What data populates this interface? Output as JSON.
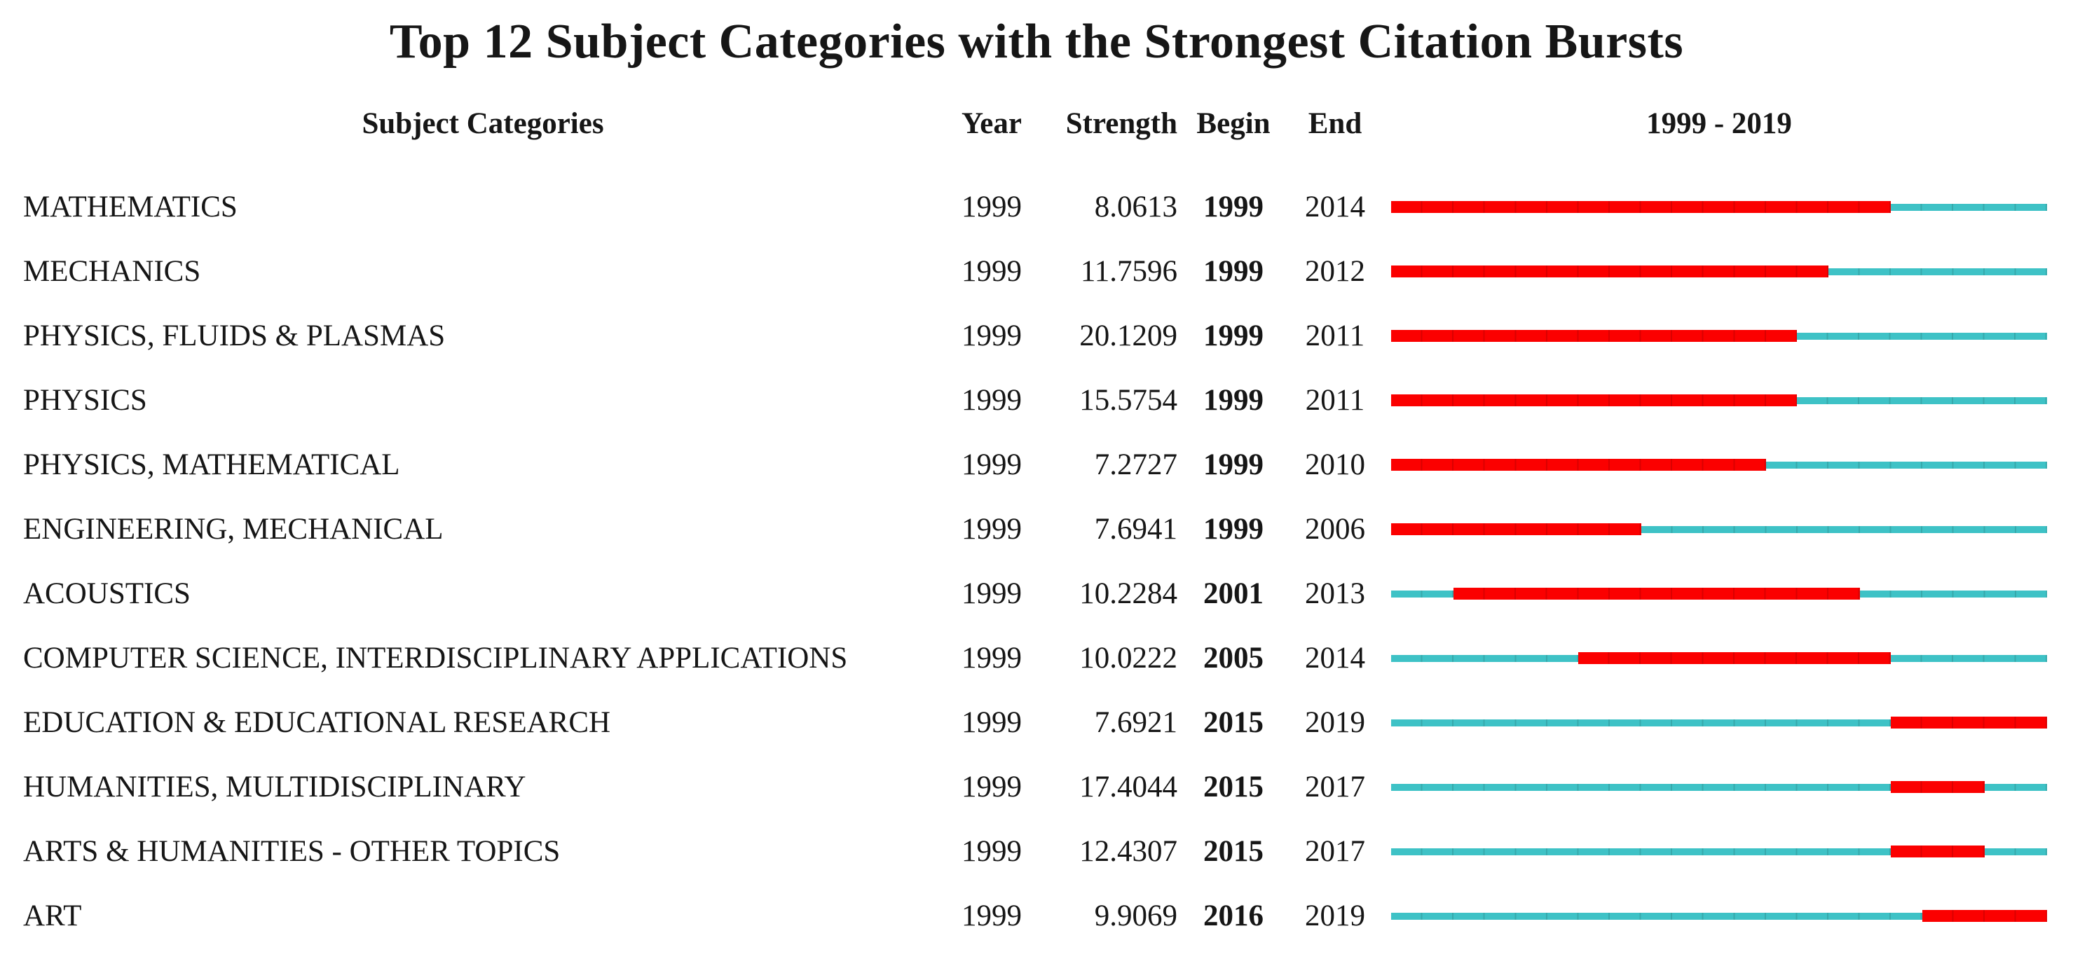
{
  "chart_data": {
    "type": "table",
    "title": "Top 12 Subject Categories with the Strongest Citation Bursts",
    "columns": {
      "subject": "Subject Categories",
      "year": "Year",
      "strength": "Strength",
      "begin": "Begin",
      "end": "End"
    },
    "timeline": {
      "label": "1999 - 2019",
      "start_year": 1999,
      "end_year": 2019
    },
    "colors": {
      "burst": "#fb0000",
      "baseline": "#3ec2c6"
    },
    "rows": [
      {
        "subject": "MATHEMATICS",
        "year": "1999",
        "strength": "8.0613",
        "begin": "1999",
        "end": "2014"
      },
      {
        "subject": "MECHANICS",
        "year": "1999",
        "strength": "11.7596",
        "begin": "1999",
        "end": "2012"
      },
      {
        "subject": "PHYSICS, FLUIDS & PLASMAS",
        "year": "1999",
        "strength": "20.1209",
        "begin": "1999",
        "end": "2011"
      },
      {
        "subject": "PHYSICS",
        "year": "1999",
        "strength": "15.5754",
        "begin": "1999",
        "end": "2011"
      },
      {
        "subject": "PHYSICS, MATHEMATICAL",
        "year": "1999",
        "strength": "7.2727",
        "begin": "1999",
        "end": "2010"
      },
      {
        "subject": "ENGINEERING, MECHANICAL",
        "year": "1999",
        "strength": "7.6941",
        "begin": "1999",
        "end": "2006"
      },
      {
        "subject": "ACOUSTICS",
        "year": "1999",
        "strength": "10.2284",
        "begin": "2001",
        "end": "2013"
      },
      {
        "subject": "COMPUTER SCIENCE, INTERDISCIPLINARY APPLICATIONS",
        "year": "1999",
        "strength": "10.0222",
        "begin": "2005",
        "end": "2014"
      },
      {
        "subject": "EDUCATION & EDUCATIONAL RESEARCH",
        "year": "1999",
        "strength": "7.6921",
        "begin": "2015",
        "end": "2019"
      },
      {
        "subject": "HUMANITIES, MULTIDISCIPLINARY",
        "year": "1999",
        "strength": "17.4044",
        "begin": "2015",
        "end": "2017"
      },
      {
        "subject": "ARTS & HUMANITIES - OTHER TOPICS",
        "year": "1999",
        "strength": "12.4307",
        "begin": "2015",
        "end": "2017"
      },
      {
        "subject": "ART",
        "year": "1999",
        "strength": "9.9069",
        "begin": "2016",
        "end": "2019"
      }
    ]
  }
}
